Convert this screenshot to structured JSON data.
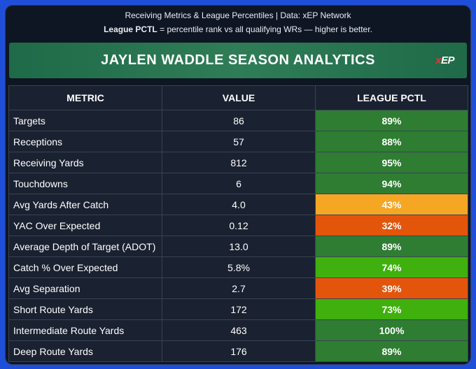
{
  "header": {
    "line1": "Receiving Metrics & League Percentiles | Data: xEP Network",
    "line2_bold": "League PCTL",
    "line2_rest": " = percentile rank vs all qualifying WRs — higher is better."
  },
  "banner": {
    "title": "JAYLEN WADDLE SEASON ANALYTICS",
    "logo_x": "x",
    "logo_rest": "EP"
  },
  "table": {
    "columns": [
      "METRIC",
      "VALUE",
      "LEAGUE PCTL"
    ],
    "rows": [
      {
        "metric": "Targets",
        "value": "86",
        "pctl": "89%",
        "color": "#2e7d32"
      },
      {
        "metric": "Receptions",
        "value": "57",
        "pctl": "88%",
        "color": "#2e7d32"
      },
      {
        "metric": "Receiving Yards",
        "value": "812",
        "pctl": "95%",
        "color": "#2e7d32"
      },
      {
        "metric": "Touchdowns",
        "value": "6",
        "pctl": "94%",
        "color": "#2e7d32"
      },
      {
        "metric": "Avg Yards After Catch",
        "value": "4.0",
        "pctl": "43%",
        "color": "#f5a623"
      },
      {
        "metric": "YAC Over Expected",
        "value": "0.12",
        "pctl": "32%",
        "color": "#e4550c"
      },
      {
        "metric": "Average Depth of Target (ADOT)",
        "value": "13.0",
        "pctl": "89%",
        "color": "#2e7d32"
      },
      {
        "metric": "Catch % Over Expected",
        "value": "5.8%",
        "pctl": "74%",
        "color": "#3fb00e"
      },
      {
        "metric": "Avg Separation",
        "value": "2.7",
        "pctl": "39%",
        "color": "#e4550c"
      },
      {
        "metric": "Short Route Yards",
        "value": "172",
        "pctl": "73%",
        "color": "#3fb00e"
      },
      {
        "metric": "Intermediate Route Yards",
        "value": "463",
        "pctl": "100%",
        "color": "#2e7d32"
      },
      {
        "metric": "Deep Route Yards",
        "value": "176",
        "pctl": "89%",
        "color": "#2e7d32"
      }
    ]
  }
}
